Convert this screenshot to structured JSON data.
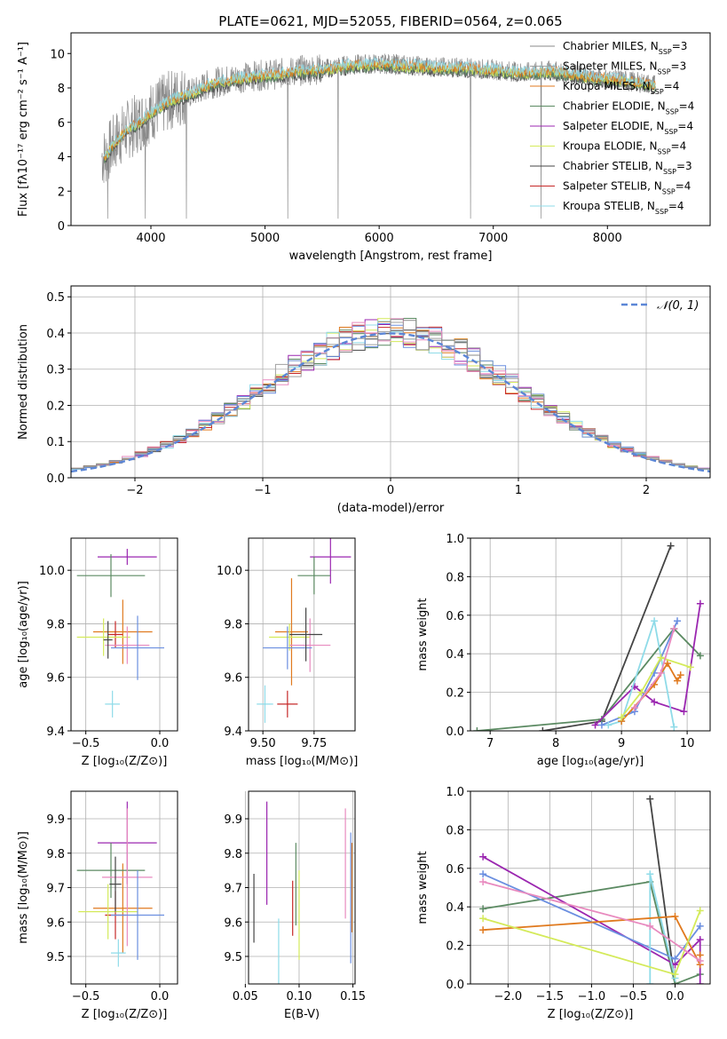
{
  "figure_title": "PLATE=0621, MJD=52055, FIBERID=0564, z=0.065",
  "colors": [
    "#8a8a8a",
    "#a0a0a0",
    "#e07a1f",
    "#5b8a62",
    "#9b27b0",
    "#d4ea5a",
    "#444444",
    "#c62828",
    "#8fdbe8",
    "#6b8fe0",
    "#e88abf"
  ],
  "chart_data": [
    {
      "id": "spectrum",
      "type": "line",
      "title": "PLATE=0621, MJD=52055, FIBERID=0564, z=0.065",
      "xlabel": "wavelength [Angstrom, rest frame]",
      "ylabel": "Flux [fλ10⁻¹⁷ erg cm⁻² s⁻¹ A⁻¹]",
      "xlim": [
        3300,
        8900
      ],
      "ylim": [
        0,
        11.2
      ],
      "xticks": [
        4000,
        5000,
        6000,
        7000,
        8000
      ],
      "yticks": [
        0,
        2,
        4,
        6,
        8,
        10
      ],
      "grid": false,
      "legend_position": "right",
      "legend": [
        {
          "label": "Chabrier MILES, N",
          "sub": "SSP",
          "tail": "=3"
        },
        {
          "label": "Salpeter MILES, N",
          "sub": "SSP",
          "tail": "=3"
        },
        {
          "label": "Kroupa MILES, N",
          "sub": "SSP",
          "tail": "=4"
        },
        {
          "label": "Chabrier ELODIE, N",
          "sub": "SSP",
          "tail": "=4"
        },
        {
          "label": "Salpeter ELODIE, N",
          "sub": "SSP",
          "tail": "=4"
        },
        {
          "label": "Kroupa ELODIE, N",
          "sub": "SSP",
          "tail": "=4"
        },
        {
          "label": "Chabrier STELIB, N",
          "sub": "SSP",
          "tail": "=3"
        },
        {
          "label": "Salpeter STELIB, N",
          "sub": "SSP",
          "tail": "=4"
        },
        {
          "label": "Kroupa STELIB, N",
          "sub": "SSP",
          "tail": "=4"
        }
      ],
      "continuum": [
        [
          3600,
          4.0
        ],
        [
          3700,
          5.0
        ],
        [
          3800,
          5.6
        ],
        [
          3900,
          6.0
        ],
        [
          4000,
          6.6
        ],
        [
          4100,
          7.0
        ],
        [
          4200,
          7.4
        ],
        [
          4300,
          7.6
        ],
        [
          4400,
          7.8
        ],
        [
          4500,
          8.2
        ],
        [
          4700,
          8.5
        ],
        [
          4900,
          8.7
        ],
        [
          5100,
          8.8
        ],
        [
          5300,
          9.0
        ],
        [
          5500,
          9.1
        ],
        [
          5700,
          9.3
        ],
        [
          5900,
          9.4
        ],
        [
          6100,
          9.4
        ],
        [
          6300,
          9.3
        ],
        [
          6500,
          9.2
        ],
        [
          6700,
          9.2
        ],
        [
          6900,
          9.1
        ],
        [
          7100,
          9.0
        ],
        [
          7300,
          8.9
        ],
        [
          7500,
          9.0
        ],
        [
          7700,
          8.8
        ],
        [
          7900,
          8.6
        ],
        [
          8100,
          8.5
        ],
        [
          8300,
          8.3
        ],
        [
          8500,
          8.1
        ],
        [
          8700,
          8.0
        ],
        [
          8900,
          7.9
        ]
      ],
      "spikes": [
        3620,
        3950,
        4310,
        5200,
        5640,
        6800,
        7420
      ]
    },
    {
      "id": "residuals",
      "type": "histogram",
      "xlabel": "(data-model)/error",
      "ylabel": "Normed distribution",
      "xlim": [
        -2.5,
        2.5
      ],
      "ylim": [
        0,
        0.53
      ],
      "xticks": [
        -2,
        -1,
        0,
        1,
        2
      ],
      "yticks": [
        0.0,
        0.1,
        0.2,
        0.3,
        0.4,
        0.5
      ],
      "grid": true,
      "legend_position": "top-right",
      "legend": "𝒩(0, 1)",
      "bin_width": 0.1,
      "bins_from": -2.5,
      "reference_curve": "gaussian mean 0 sigma 1",
      "series_count": 11
    },
    {
      "id": "age_vs_Z",
      "type": "scatter",
      "xlabel": "Z [log₁₀(Z/Z⊙)]",
      "ylabel": "age  [log₁₀(age/yr)]",
      "xlim": [
        -0.6,
        0.12
      ],
      "ylim": [
        9.4,
        10.12
      ],
      "xticks": [
        -0.5,
        0.0
      ],
      "yticks": [
        9.4,
        9.6,
        9.8,
        10.0
      ],
      "grid": true,
      "points": [
        {
          "x": -0.25,
          "y": 9.77,
          "xerr": 0.2,
          "yerr": 0.12,
          "color": 2
        },
        {
          "x": -0.3,
          "y": 9.76,
          "xerr": 0.05,
          "yerr": 0.05,
          "color": 7
        },
        {
          "x": -0.22,
          "y": 10.05,
          "xerr": 0.2,
          "yerr": 0.03,
          "color": 4
        },
        {
          "x": -0.33,
          "y": 9.98,
          "xerr": 0.23,
          "yerr": 0.08,
          "color": 3
        },
        {
          "x": -0.38,
          "y": 9.75,
          "xerr": 0.18,
          "yerr": 0.07,
          "color": 5
        },
        {
          "x": -0.22,
          "y": 9.72,
          "xerr": 0.15,
          "yerr": 0.07,
          "color": 10
        },
        {
          "x": -0.15,
          "y": 9.71,
          "xerr": 0.18,
          "yerr": 0.12,
          "color": 9
        },
        {
          "x": -0.32,
          "y": 9.5,
          "xerr": 0.05,
          "yerr": 0.05,
          "color": 8
        },
        {
          "x": -0.35,
          "y": 9.74,
          "xerr": 0.03,
          "yerr": 0.07,
          "color": 6
        }
      ]
    },
    {
      "id": "age_vs_mass",
      "type": "scatter",
      "xlabel": "mass [log₁₀(M/M⊙)]",
      "ylabel": "",
      "xlim": [
        9.43,
        9.95
      ],
      "ylim": [
        9.4,
        10.12
      ],
      "xticks": [
        9.5,
        9.75
      ],
      "yticks": [
        9.4,
        9.6,
        9.8,
        10.0
      ],
      "grid": true,
      "points": [
        {
          "x": 9.64,
          "y": 9.77,
          "xerr": 0.08,
          "yerr": 0.2,
          "color": 2
        },
        {
          "x": 9.62,
          "y": 9.5,
          "xerr": 0.05,
          "yerr": 0.05,
          "color": 7
        },
        {
          "x": 9.83,
          "y": 10.05,
          "xerr": 0.1,
          "yerr": 0.1,
          "color": 4
        },
        {
          "x": 9.75,
          "y": 9.98,
          "xerr": 0.08,
          "yerr": 0.07,
          "color": 3
        },
        {
          "x": 9.63,
          "y": 9.75,
          "xerr": 0.1,
          "yerr": 0.05,
          "color": 5
        },
        {
          "x": 9.73,
          "y": 9.72,
          "xerr": 0.1,
          "yerr": 0.1,
          "color": 10
        },
        {
          "x": 9.62,
          "y": 9.71,
          "xerr": 0.12,
          "yerr": 0.08,
          "color": 9
        },
        {
          "x": 9.51,
          "y": 9.5,
          "xerr": 0.04,
          "yerr": 0.07,
          "color": 8
        },
        {
          "x": 9.71,
          "y": 9.76,
          "xerr": 0.08,
          "yerr": 0.1,
          "color": 6
        }
      ]
    },
    {
      "id": "weight_vs_age",
      "type": "line",
      "xlabel": "age  [log₁₀(age/yr)]",
      "ylabel": "mass weight",
      "xlim": [
        6.7,
        10.35
      ],
      "ylim": [
        0,
        1.0
      ],
      "xticks": [
        7,
        8,
        9,
        10
      ],
      "yticks": [
        0.0,
        0.2,
        0.4,
        0.6,
        0.8,
        1.0
      ],
      "grid": true,
      "series": [
        {
          "color": 6,
          "x": [
            7.8,
            8.7,
            9.75
          ],
          "y": [
            0.0,
            0.05,
            0.96
          ]
        },
        {
          "color": 3,
          "x": [
            6.8,
            8.7,
            9.8,
            10.2
          ],
          "y": [
            0.0,
            0.06,
            0.53,
            0.39
          ]
        },
        {
          "color": 4,
          "x": [
            8.6,
            9.2,
            9.5,
            9.95,
            10.2
          ],
          "y": [
            0.03,
            0.23,
            0.15,
            0.1,
            0.66
          ]
        },
        {
          "color": 9,
          "x": [
            8.7,
            9.2,
            9.5,
            9.85
          ],
          "y": [
            0.03,
            0.1,
            0.3,
            0.57
          ]
        },
        {
          "color": 8,
          "x": [
            8.8,
            9.0,
            9.5,
            9.8
          ],
          "y": [
            0.03,
            0.05,
            0.57,
            0.02
          ]
        },
        {
          "color": 2,
          "x": [
            9.0,
            9.5,
            9.7,
            9.85,
            9.9
          ],
          "y": [
            0.05,
            0.24,
            0.35,
            0.26,
            0.29
          ]
        },
        {
          "color": 5,
          "x": [
            9.0,
            9.3,
            9.6,
            10.05
          ],
          "y": [
            0.07,
            0.2,
            0.38,
            0.33
          ]
        },
        {
          "color": 10,
          "x": [
            9.2,
            9.6,
            9.8
          ],
          "y": [
            0.12,
            0.3,
            0.53
          ]
        }
      ]
    },
    {
      "id": "mass_vs_Z",
      "type": "scatter",
      "xlabel": "Z [log₁₀(Z/Z⊙)]",
      "ylabel": "mass [log₁₀(M/M⊙)]",
      "xlim": [
        -0.6,
        0.12
      ],
      "ylim": [
        9.42,
        9.98
      ],
      "xticks": [
        -0.5,
        0.0
      ],
      "yticks": [
        9.5,
        9.6,
        9.7,
        9.8,
        9.9
      ],
      "grid": true,
      "points": [
        {
          "x": -0.25,
          "y": 9.64,
          "xerr": 0.2,
          "yerr": 0.13,
          "color": 2
        },
        {
          "x": -0.3,
          "y": 9.62,
          "xerr": 0.07,
          "yerr": 0.07,
          "color": 7
        },
        {
          "x": -0.22,
          "y": 9.83,
          "xerr": 0.2,
          "yerr": 0.12,
          "color": 4
        },
        {
          "x": -0.33,
          "y": 9.75,
          "xerr": 0.23,
          "yerr": 0.08,
          "color": 3
        },
        {
          "x": -0.35,
          "y": 9.63,
          "xerr": 0.2,
          "yerr": 0.08,
          "color": 5
        },
        {
          "x": -0.22,
          "y": 9.73,
          "xerr": 0.17,
          "yerr": 0.2,
          "color": 10
        },
        {
          "x": -0.15,
          "y": 9.62,
          "xerr": 0.18,
          "yerr": 0.13,
          "color": 9
        },
        {
          "x": -0.28,
          "y": 9.51,
          "xerr": 0.05,
          "yerr": 0.04,
          "color": 8
        },
        {
          "x": -0.3,
          "y": 9.71,
          "xerr": 0.04,
          "yerr": 0.08,
          "color": 6
        }
      ]
    },
    {
      "id": "mass_vs_EBV",
      "type": "scatter",
      "xlabel": "E(B-V)",
      "ylabel": "",
      "xlim": [
        0.053,
        0.152
      ],
      "ylim": [
        9.42,
        9.98
      ],
      "xticks": [
        0.05,
        0.1,
        0.15
      ],
      "yticks": [
        9.5,
        9.6,
        9.7,
        9.8,
        9.9
      ],
      "grid": true,
      "points": [
        {
          "x": 0.149,
          "y": 9.7,
          "xerr": 0,
          "yerr": 0.13,
          "color": 2
        },
        {
          "x": 0.094,
          "y": 9.64,
          "xerr": 0,
          "yerr": 0.08,
          "color": 7
        },
        {
          "x": 0.07,
          "y": 9.8,
          "xerr": 0,
          "yerr": 0.15,
          "color": 4
        },
        {
          "x": 0.097,
          "y": 9.71,
          "xerr": 0,
          "yerr": 0.12,
          "color": 3
        },
        {
          "x": 0.1,
          "y": 9.62,
          "xerr": 0,
          "yerr": 0.13,
          "color": 5
        },
        {
          "x": 0.143,
          "y": 9.77,
          "xerr": 0,
          "yerr": 0.16,
          "color": 10
        },
        {
          "x": 0.148,
          "y": 9.67,
          "xerr": 0,
          "yerr": 0.19,
          "color": 9
        },
        {
          "x": 0.081,
          "y": 9.51,
          "xerr": 0,
          "yerr": 0.1,
          "color": 8
        },
        {
          "x": 0.058,
          "y": 9.64,
          "xerr": 0,
          "yerr": 0.1,
          "color": 6
        }
      ]
    },
    {
      "id": "weight_vs_Z",
      "type": "line",
      "xlabel": "Z [log₁₀(Z/Z⊙)]",
      "ylabel": "mass weight",
      "xlim": [
        -2.45,
        0.42
      ],
      "ylim": [
        0,
        1.0
      ],
      "xticks": [
        -2.0,
        -1.5,
        -1.0,
        -0.5,
        0.0
      ],
      "yticks": [
        0.0,
        0.2,
        0.4,
        0.6,
        0.8,
        1.0
      ],
      "grid": true,
      "series": [
        {
          "color": 6,
          "x": [
            -0.3,
            0.0
          ],
          "y": [
            0.96,
            0.0
          ]
        },
        {
          "color": 3,
          "x": [
            -2.3,
            -0.3,
            0.0,
            0.3
          ],
          "y": [
            0.39,
            0.53,
            0.0,
            0.05
          ]
        },
        {
          "color": 4,
          "x": [
            -2.3,
            0.0,
            0.3,
            0.3
          ],
          "y": [
            0.66,
            0.1,
            0.23,
            0.0
          ]
        },
        {
          "color": 9,
          "x": [
            -2.3,
            0.0,
            0.3
          ],
          "y": [
            0.57,
            0.13,
            0.3
          ]
        },
        {
          "color": 8,
          "x": [
            -0.3,
            -0.3,
            0.0
          ],
          "y": [
            0.0,
            0.57,
            0.03
          ]
        },
        {
          "color": 2,
          "x": [
            -2.3,
            0.0,
            0.3,
            0.3
          ],
          "y": [
            0.28,
            0.35,
            0.1,
            0.15
          ]
        },
        {
          "color": 5,
          "x": [
            -2.3,
            0.0,
            0.3
          ],
          "y": [
            0.34,
            0.05,
            0.38
          ]
        },
        {
          "color": 10,
          "x": [
            -2.3,
            -0.3,
            0.3
          ],
          "y": [
            0.53,
            0.3,
            0.12
          ]
        }
      ]
    }
  ]
}
